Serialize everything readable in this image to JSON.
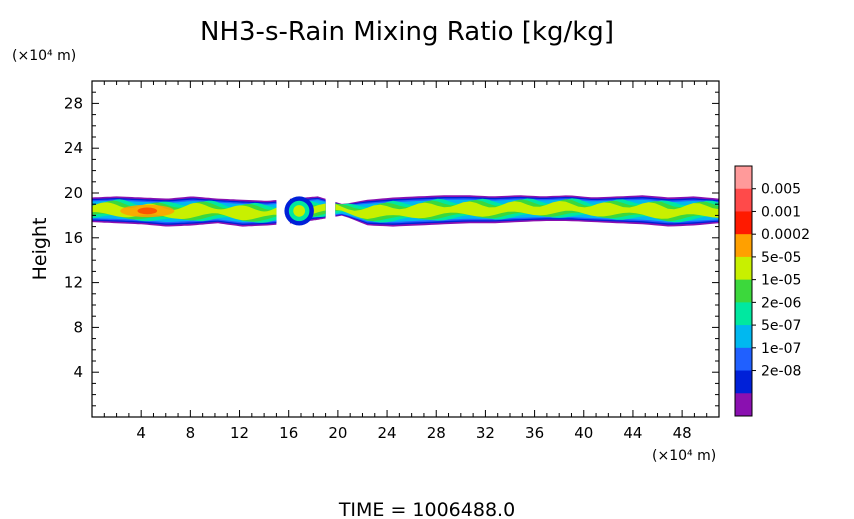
{
  "chart_data": {
    "type": "heatmap",
    "title": "NH3-s-Rain Mixing Ratio [kg/kg]",
    "xlabel": "",
    "ylabel": "Height",
    "x_unit": "(×10⁴ m)",
    "y_unit": "(×10⁴ m)",
    "xlim": [
      0,
      51
    ],
    "ylim": [
      0,
      30
    ],
    "xticks": [
      4,
      8,
      12,
      16,
      20,
      24,
      28,
      32,
      36,
      40,
      44,
      48
    ],
    "yticks": [
      4,
      8,
      12,
      16,
      20,
      24,
      28
    ],
    "colorbar": {
      "labels": [
        "0.005",
        "0.001",
        "0.0002",
        "5e-05",
        "1e-05",
        "2e-06",
        "5e-07",
        "1e-07",
        "2e-08"
      ],
      "colors": [
        "#ff9a9a",
        "#ff4a4a",
        "#ff1a00",
        "#ffa000",
        "#c8f000",
        "#3cd83c",
        "#00e8a0",
        "#00b8f0",
        "#2060ff",
        "#0020d8",
        "#8a10b0"
      ]
    },
    "cloud_layer": {
      "x_range": [
        0,
        51
      ],
      "bottom": [
        17.4,
        17.3,
        17.2,
        17.0,
        17.1,
        17.3,
        17.0,
        17.1,
        17.3,
        17.6,
        18.0,
        17.1,
        17.0,
        17.1,
        17.2,
        17.3,
        17.3,
        17.4,
        17.5,
        17.5,
        17.4,
        17.3,
        17.2,
        17.0,
        17.1,
        17.3
      ],
      "top": [
        19.6,
        19.7,
        19.6,
        19.5,
        19.7,
        19.5,
        19.4,
        19.3,
        19.5,
        19.7,
        19.0,
        19.4,
        19.6,
        19.7,
        19.8,
        19.8,
        19.7,
        19.8,
        19.7,
        19.8,
        19.6,
        19.7,
        19.8,
        19.6,
        19.7,
        19.5
      ],
      "gaps": [
        [
          15.0,
          16.1
        ],
        [
          19.0,
          19.8
        ]
      ],
      "peak_value": "0.0002",
      "peak_x": 4.5,
      "peak_y": 18.4
    },
    "grid": false,
    "legend": "right"
  },
  "footer": {
    "time_label": "TIME = 1006488.0"
  }
}
